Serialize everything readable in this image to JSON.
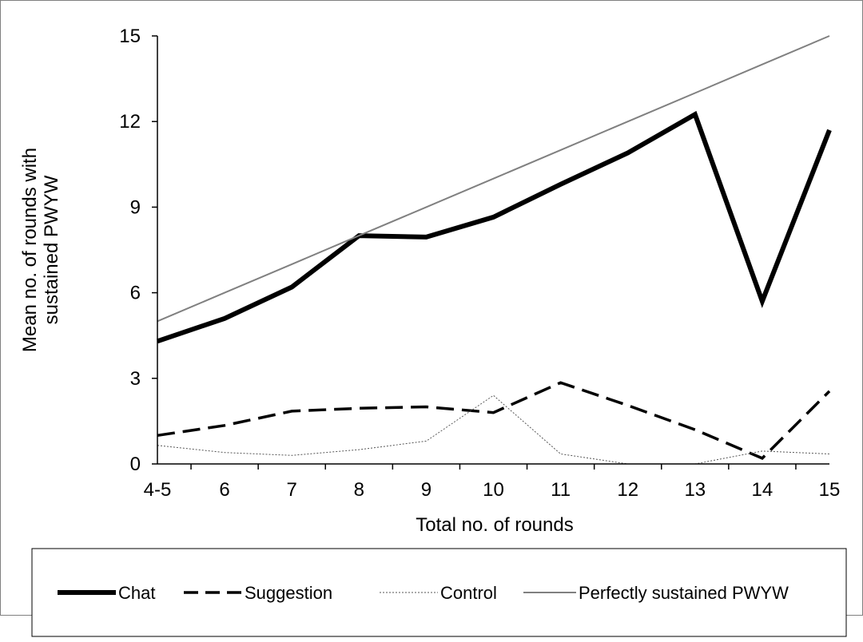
{
  "chart_data": {
    "type": "line",
    "title": "",
    "xlabel": "Total no. of rounds",
    "ylabel_lines": [
      "Mean no. of rounds with",
      "sustained PWYW"
    ],
    "categories": [
      "4-5",
      "6",
      "7",
      "8",
      "9",
      "10",
      "11",
      "12",
      "13",
      "14",
      "15"
    ],
    "ylim": [
      0,
      15
    ],
    "yticks": [
      0,
      3,
      6,
      9,
      12,
      15
    ],
    "grid": false,
    "legend_position": "bottom",
    "series": [
      {
        "name": "Chat",
        "style": "thick-solid",
        "color": "#000000",
        "values": [
          4.3,
          5.1,
          6.2,
          8.0,
          7.95,
          8.65,
          9.8,
          10.9,
          12.25,
          5.7,
          11.7
        ]
      },
      {
        "name": "Suggestion",
        "style": "dashed",
        "color": "#000000",
        "values": [
          1.0,
          1.35,
          1.85,
          1.95,
          2.0,
          1.8,
          2.85,
          2.05,
          1.2,
          0.2,
          2.55
        ]
      },
      {
        "name": "Control",
        "style": "thin-dotted",
        "color": "#555555",
        "values": [
          0.65,
          0.4,
          0.3,
          0.5,
          0.8,
          2.4,
          0.35,
          0.0,
          0.0,
          0.45,
          0.35
        ]
      },
      {
        "name": "Perfectly sustained PWYW",
        "style": "thin-solid",
        "color": "#808080",
        "values": [
          5,
          6,
          7,
          8,
          9,
          10,
          11,
          12,
          13,
          14,
          15
        ]
      }
    ]
  }
}
